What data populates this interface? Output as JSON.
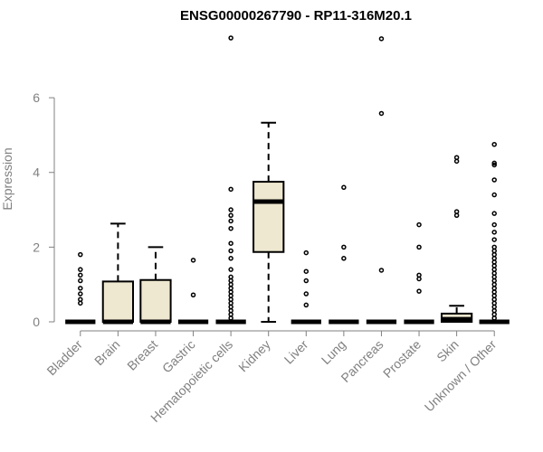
{
  "chart_data": {
    "type": "boxplot",
    "title": "ENSG00000267790 - RP11-316M20.1",
    "xlabel": "",
    "ylabel": "Expression",
    "ylim": [
      0,
      7.6
    ],
    "yticks": [
      0,
      2,
      4,
      6
    ],
    "box_fill": "#efe8d0",
    "categories": [
      "Bladder",
      "Brain",
      "Breast",
      "Gastric",
      "Hematopoietic cells",
      "Kidney",
      "Liver",
      "Lung",
      "Pancreas",
      "Prostate",
      "Skin",
      "Unknown / Other"
    ],
    "boxes": [
      {
        "name": "Bladder",
        "min": 0,
        "q1": 0,
        "median": 0,
        "q3": 0,
        "max": 0,
        "outliers": [
          0.5,
          0.6,
          0.75,
          0.9,
          1.1,
          1.25,
          1.4,
          1.8
        ]
      },
      {
        "name": "Brain",
        "min": 0,
        "q1": 0,
        "median": 0,
        "q3": 1.08,
        "max": 2.63,
        "outliers": []
      },
      {
        "name": "Breast",
        "min": 0,
        "q1": 0,
        "median": 0,
        "q3": 1.12,
        "max": 2.0,
        "outliers": []
      },
      {
        "name": "Gastric",
        "min": 0,
        "q1": 0,
        "median": 0,
        "q3": 0,
        "max": 0,
        "outliers": [
          0.72,
          1.65
        ]
      },
      {
        "name": "Hematopoietic cells",
        "min": 0,
        "q1": 0,
        "median": 0,
        "q3": 0,
        "max": 0,
        "outliers": [
          0.1,
          0.2,
          0.3,
          0.4,
          0.5,
          0.6,
          0.7,
          0.8,
          0.9,
          1.0,
          1.1,
          1.2,
          1.4,
          1.7,
          1.9,
          2.1,
          2.5,
          2.7,
          2.85,
          3.0,
          3.55,
          7.6
        ]
      },
      {
        "name": "Kidney",
        "min": 0,
        "q1": 1.87,
        "median": 3.22,
        "q3": 3.75,
        "max": 5.33,
        "outliers": []
      },
      {
        "name": "Liver",
        "min": 0,
        "q1": 0,
        "median": 0,
        "q3": 0,
        "max": 0,
        "outliers": [
          0.45,
          0.75,
          1.1,
          1.35,
          1.85
        ]
      },
      {
        "name": "Lung",
        "min": 0,
        "q1": 0,
        "median": 0,
        "q3": 0,
        "max": 0,
        "outliers": [
          1.7,
          2.0,
          3.6
        ]
      },
      {
        "name": "Pancreas",
        "min": 0,
        "q1": 0,
        "median": 0,
        "q3": 0,
        "max": 0,
        "outliers": [
          1.38,
          5.58,
          7.58
        ]
      },
      {
        "name": "Prostate",
        "min": 0,
        "q1": 0,
        "median": 0,
        "q3": 0,
        "max": 0,
        "outliers": [
          0.82,
          1.15,
          1.25,
          2.0,
          2.6
        ]
      },
      {
        "name": "Skin",
        "min": 0,
        "q1": 0,
        "median": 0.07,
        "q3": 0.22,
        "max": 0.43,
        "outliers": [
          2.85,
          2.95,
          4.3,
          4.4
        ]
      },
      {
        "name": "Unknown / Other",
        "min": 0,
        "q1": 0,
        "median": 0,
        "q3": 0,
        "max": 0,
        "outliers": [
          0.1,
          0.2,
          0.3,
          0.4,
          0.5,
          0.6,
          0.7,
          0.8,
          0.9,
          1.0,
          1.1,
          1.2,
          1.3,
          1.4,
          1.5,
          1.6,
          1.7,
          1.8,
          1.9,
          2.0,
          2.2,
          2.4,
          2.6,
          2.9,
          3.4,
          3.8,
          4.2,
          4.25,
          4.75
        ]
      }
    ]
  }
}
